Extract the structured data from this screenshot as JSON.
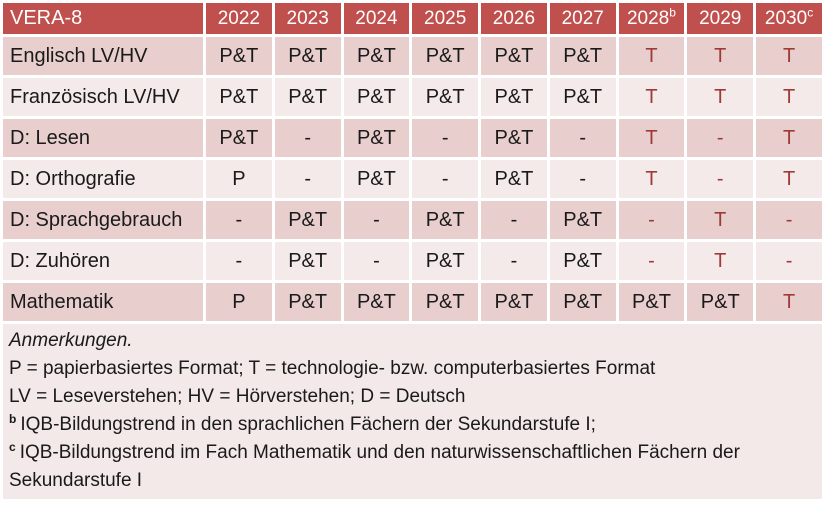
{
  "table": {
    "title": "VERA-8",
    "columns": [
      {
        "text": "2022",
        "sup": ""
      },
      {
        "text": "2023",
        "sup": ""
      },
      {
        "text": "2024",
        "sup": ""
      },
      {
        "text": "2025",
        "sup": ""
      },
      {
        "text": "2026",
        "sup": ""
      },
      {
        "text": "2027",
        "sup": ""
      },
      {
        "text": "2028",
        "sup": "b"
      },
      {
        "text": "2029",
        "sup": ""
      },
      {
        "text": "2030",
        "sup": "c"
      }
    ],
    "rows": [
      {
        "label": "Englisch LV/HV",
        "cells": [
          {
            "t": "P&T",
            "red": false
          },
          {
            "t": "P&T",
            "red": false
          },
          {
            "t": "P&T",
            "red": false
          },
          {
            "t": "P&T",
            "red": false
          },
          {
            "t": "P&T",
            "red": false
          },
          {
            "t": "P&T",
            "red": false
          },
          {
            "t": "T",
            "red": true
          },
          {
            "t": "T",
            "red": true
          },
          {
            "t": "T",
            "red": true
          }
        ]
      },
      {
        "label": "Französisch LV/HV",
        "cells": [
          {
            "t": "P&T",
            "red": false
          },
          {
            "t": "P&T",
            "red": false
          },
          {
            "t": "P&T",
            "red": false
          },
          {
            "t": "P&T",
            "red": false
          },
          {
            "t": "P&T",
            "red": false
          },
          {
            "t": "P&T",
            "red": false
          },
          {
            "t": "T",
            "red": true
          },
          {
            "t": "T",
            "red": true
          },
          {
            "t": "T",
            "red": true
          }
        ]
      },
      {
        "label": "D: Lesen",
        "cells": [
          {
            "t": "P&T",
            "red": false
          },
          {
            "t": "-",
            "red": false
          },
          {
            "t": "P&T",
            "red": false
          },
          {
            "t": "-",
            "red": false
          },
          {
            "t": "P&T",
            "red": false
          },
          {
            "t": "-",
            "red": false
          },
          {
            "t": "T",
            "red": true
          },
          {
            "t": "-",
            "red": true
          },
          {
            "t": "T",
            "red": true
          }
        ]
      },
      {
        "label": "D: Orthografie",
        "cells": [
          {
            "t": "P",
            "red": false
          },
          {
            "t": "-",
            "red": false
          },
          {
            "t": "P&T",
            "red": false
          },
          {
            "t": "-",
            "red": false
          },
          {
            "t": "P&T",
            "red": false
          },
          {
            "t": "-",
            "red": false
          },
          {
            "t": "T",
            "red": true
          },
          {
            "t": "-",
            "red": true
          },
          {
            "t": "T",
            "red": true
          }
        ]
      },
      {
        "label": "D: Sprachgebrauch",
        "cells": [
          {
            "t": "-",
            "red": false
          },
          {
            "t": "P&T",
            "red": false
          },
          {
            "t": "-",
            "red": false
          },
          {
            "t": "P&T",
            "red": false
          },
          {
            "t": "-",
            "red": false
          },
          {
            "t": "P&T",
            "red": false
          },
          {
            "t": "-",
            "red": true
          },
          {
            "t": "T",
            "red": true
          },
          {
            "t": "-",
            "red": true
          }
        ]
      },
      {
        "label": "D: Zuhören",
        "cells": [
          {
            "t": "-",
            "red": false
          },
          {
            "t": "P&T",
            "red": false
          },
          {
            "t": "-",
            "red": false
          },
          {
            "t": "P&T",
            "red": false
          },
          {
            "t": "-",
            "red": false
          },
          {
            "t": "P&T",
            "red": false
          },
          {
            "t": "-",
            "red": true
          },
          {
            "t": "T",
            "red": true
          },
          {
            "t": "-",
            "red": true
          }
        ]
      },
      {
        "label": "Mathematik",
        "cells": [
          {
            "t": "P",
            "red": false
          },
          {
            "t": "P&T",
            "red": false
          },
          {
            "t": "P&T",
            "red": false
          },
          {
            "t": "P&T",
            "red": false
          },
          {
            "t": "P&T",
            "red": false
          },
          {
            "t": "P&T",
            "red": false
          },
          {
            "t": "P&T",
            "red": false
          },
          {
            "t": "P&T",
            "red": false
          },
          {
            "t": "T",
            "red": true
          }
        ]
      }
    ]
  },
  "notes": {
    "anmerkungen": "Anmerkungen.",
    "format_line": "P = papierbasiertes Format; T = technologie- bzw. computerbasiertes Format",
    "abbr_line": "LV = Leseverstehen; HV = Hörverstehen; D = Deutsch",
    "note_b": {
      "sup": "b",
      "text": "IQB-Bildungstrend in den sprachlichen Fächern der Sekundarstufe I;"
    },
    "note_c": {
      "sup": "c",
      "text": "IQB-Bildungstrend im Fach Mathematik und den naturwissenschaftlichen Fächern der Sekundarstufe I"
    }
  },
  "colors": {
    "header_bg": "#C0504D",
    "band_dark": "#E8CECD",
    "band_light": "#F4EAE9",
    "notes_bg": "#F2E9E8",
    "accent_red_text": "#9E3B38",
    "text_dark": "#1a1a1a",
    "header_text": "#FFFFFF"
  }
}
